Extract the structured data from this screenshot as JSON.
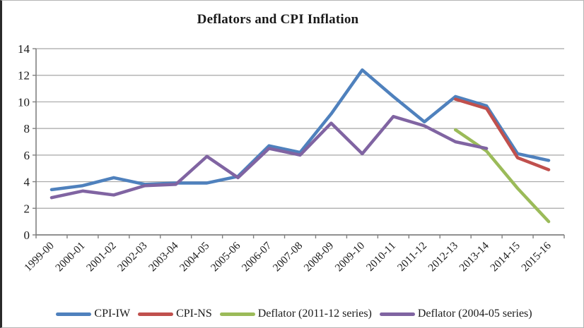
{
  "chart_data": {
    "type": "line",
    "title": "Deflators and CPI Inflation",
    "categories": [
      "1999-00",
      "2000-01",
      "2001-02",
      "2002-03",
      "2003-04",
      "2004-05",
      "2005-06",
      "2006-07",
      "2007-08",
      "2008-09",
      "2009-10",
      "2010-11",
      "2011-12",
      "2012-13",
      "2013-14",
      "2014-15",
      "2015-16"
    ],
    "series": [
      {
        "name": "CPI-IW",
        "color": "#4F81BD",
        "values": [
          3.4,
          3.7,
          4.3,
          3.8,
          3.9,
          3.9,
          4.4,
          6.7,
          6.2,
          9.1,
          12.4,
          10.4,
          8.5,
          10.4,
          9.7,
          6.1,
          5.6
        ]
      },
      {
        "name": "CPI-NS",
        "color": "#C0504D",
        "values": [
          null,
          null,
          null,
          null,
          null,
          null,
          null,
          null,
          null,
          null,
          null,
          null,
          null,
          10.2,
          9.5,
          5.8,
          4.9
        ]
      },
      {
        "name": "Deflator (2011-12 series)",
        "color": "#9BBB59",
        "values": [
          null,
          null,
          null,
          null,
          null,
          null,
          null,
          null,
          null,
          null,
          null,
          null,
          null,
          7.9,
          6.3,
          3.5,
          1.0
        ]
      },
      {
        "name": "Deflator (2004-05 series)",
        "color": "#8064A2",
        "values": [
          2.8,
          3.3,
          3.0,
          3.7,
          3.8,
          5.9,
          4.3,
          6.5,
          6.0,
          8.4,
          6.1,
          8.9,
          8.2,
          7.0,
          6.5,
          null,
          null
        ]
      }
    ],
    "xlabel": "",
    "ylabel": "",
    "ylim": [
      0,
      14
    ],
    "y_ticks": [
      0,
      2,
      4,
      6,
      8,
      10,
      12,
      14
    ],
    "grid": true,
    "legend_position": "bottom"
  },
  "axis_style": {
    "grid_color": "#A6A6A6",
    "axis_color": "#808080",
    "label_color": "#1a1a1a"
  }
}
